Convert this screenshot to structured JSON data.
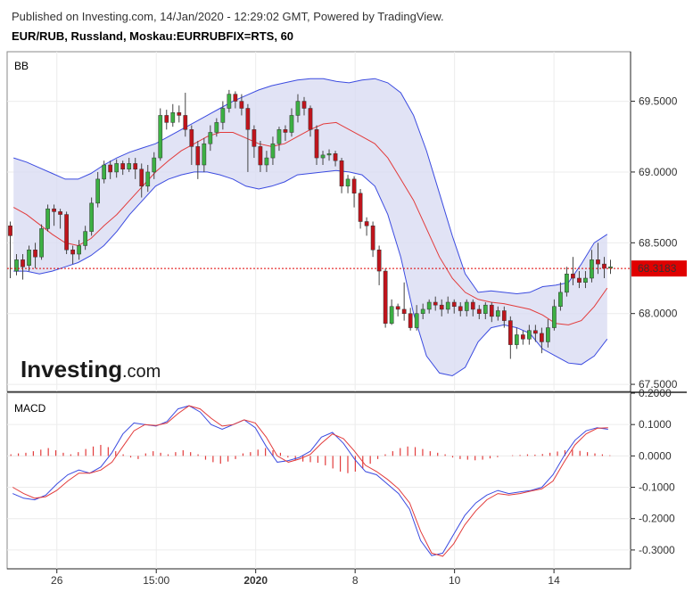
{
  "header": {
    "published": "Published on Investing.com, 14/Jan/2020 - 12:29:02 GMT, Powered by TradingView.",
    "symbol": "EUR/RUB, Russland, Moskau:EURRUBFIX=RTS, 60"
  },
  "logo": {
    "brand": "Investing",
    "suffix": ".com"
  },
  "colors": {
    "up": "#3cb043",
    "down": "#c0141c",
    "band_line": "#3b4be0",
    "band_fill": "#d9dcf3",
    "basis": "#e23b3b",
    "price_line": "#e00000",
    "macd_line": "#3b4be0",
    "signal_line": "#e23b3b",
    "histogram": "#e23b3b"
  },
  "chart_data": [
    {
      "type": "candlestick",
      "title": "BB",
      "y_ticks": [
        "69.5000",
        "69.0000",
        "68.5000",
        "68.0000",
        "67.5000"
      ],
      "ylim": [
        67.45,
        69.85
      ],
      "x_ticks": [
        "26",
        "15:00",
        "2020",
        "8",
        "10",
        "14"
      ],
      "last_price": "68.3183",
      "candles": [
        [
          68.62,
          68.55,
          68.25,
          68.65
        ],
        [
          68.3,
          68.38,
          68.27,
          68.42
        ],
        [
          68.38,
          68.33,
          68.24,
          68.42
        ],
        [
          68.34,
          68.45,
          68.3,
          68.48
        ],
        [
          68.45,
          68.4,
          68.32,
          68.5
        ],
        [
          68.4,
          68.6,
          68.38,
          68.63
        ],
        [
          68.6,
          68.74,
          68.58,
          68.77
        ],
        [
          68.74,
          68.72,
          68.62,
          68.77
        ],
        [
          68.72,
          68.7,
          68.6,
          68.74
        ],
        [
          68.7,
          68.45,
          68.42,
          68.72
        ],
        [
          68.45,
          68.42,
          68.35,
          68.48
        ],
        [
          68.42,
          68.48,
          68.38,
          68.52
        ],
        [
          68.48,
          68.58,
          68.45,
          68.62
        ],
        [
          68.58,
          68.78,
          68.55,
          68.82
        ],
        [
          68.78,
          68.95,
          68.75,
          69.0
        ],
        [
          68.95,
          69.05,
          68.92,
          69.08
        ],
        [
          69.05,
          69.0,
          68.95,
          69.08
        ],
        [
          69.0,
          69.06,
          68.96,
          69.09
        ],
        [
          69.06,
          69.02,
          68.98,
          69.08
        ],
        [
          69.02,
          69.06,
          69.0,
          69.1
        ],
        [
          69.06,
          69.02,
          68.95,
          69.1
        ],
        [
          69.02,
          68.9,
          68.82,
          69.06
        ],
        [
          68.9,
          69.0,
          68.86,
          69.05
        ],
        [
          69.0,
          69.1,
          68.95,
          69.14
        ],
        [
          69.1,
          69.4,
          69.08,
          69.45
        ],
        [
          69.4,
          69.35,
          69.3,
          69.44
        ],
        [
          69.35,
          69.42,
          69.32,
          69.48
        ],
        [
          69.42,
          69.4,
          69.35,
          69.47
        ],
        [
          69.4,
          69.3,
          69.25,
          69.56
        ],
        [
          69.3,
          69.18,
          69.05,
          69.33
        ],
        [
          69.18,
          69.05,
          68.95,
          69.22
        ],
        [
          69.05,
          69.2,
          69.0,
          69.24
        ],
        [
          69.2,
          69.28,
          69.15,
          69.33
        ],
        [
          69.28,
          69.35,
          69.25,
          69.38
        ],
        [
          69.35,
          69.45,
          69.3,
          69.5
        ],
        [
          69.45,
          69.55,
          69.42,
          69.58
        ],
        [
          69.55,
          69.5,
          69.45,
          69.57
        ],
        [
          69.5,
          69.45,
          69.4,
          69.55
        ],
        [
          69.45,
          69.3,
          69.0,
          69.48
        ],
        [
          69.3,
          69.18,
          69.1,
          69.33
        ],
        [
          69.18,
          69.05,
          69.0,
          69.22
        ],
        [
          69.05,
          69.1,
          69.0,
          69.15
        ],
        [
          69.1,
          69.2,
          69.05,
          69.25
        ],
        [
          69.2,
          69.3,
          69.15,
          69.32
        ],
        [
          69.3,
          69.28,
          69.22,
          69.33
        ],
        [
          69.28,
          69.4,
          69.25,
          69.45
        ],
        [
          69.4,
          69.5,
          69.35,
          69.55
        ],
        [
          69.5,
          69.45,
          69.4,
          69.53
        ],
        [
          69.45,
          69.3,
          69.25,
          69.47
        ],
        [
          69.3,
          69.1,
          69.05,
          69.33
        ],
        [
          69.1,
          69.12,
          69.05,
          69.15
        ],
        [
          69.12,
          69.13,
          69.08,
          69.16
        ],
        [
          69.13,
          69.08,
          69.04,
          69.15
        ],
        [
          69.08,
          68.9,
          68.85,
          69.1
        ],
        [
          68.9,
          68.95,
          68.85,
          68.98
        ],
        [
          68.95,
          68.85,
          68.75,
          68.97
        ],
        [
          68.85,
          68.65,
          68.6,
          68.88
        ],
        [
          68.65,
          68.62,
          68.55,
          68.68
        ],
        [
          68.62,
          68.45,
          68.4,
          68.65
        ],
        [
          68.45,
          68.3,
          68.2,
          68.48
        ],
        [
          68.3,
          67.93,
          67.9,
          68.32
        ],
        [
          67.93,
          68.05,
          67.92,
          68.1
        ],
        [
          68.05,
          68.03,
          67.98,
          68.07
        ],
        [
          68.03,
          68.0,
          67.95,
          68.22
        ],
        [
          68.0,
          67.9,
          67.88,
          68.04
        ],
        [
          67.9,
          68.0,
          67.88,
          68.06
        ],
        [
          68.0,
          68.03,
          67.96,
          68.07
        ],
        [
          68.03,
          68.08,
          68.0,
          68.1
        ],
        [
          68.08,
          68.06,
          68.02,
          68.12
        ],
        [
          68.06,
          68.03,
          67.98,
          68.1
        ],
        [
          68.03,
          68.08,
          68.0,
          68.12
        ],
        [
          68.08,
          68.05,
          68.0,
          68.1
        ],
        [
          68.05,
          68.02,
          67.98,
          68.08
        ],
        [
          68.02,
          68.08,
          67.98,
          68.1
        ],
        [
          68.08,
          68.03,
          67.98,
          68.1
        ],
        [
          68.03,
          68.0,
          67.96,
          68.06
        ],
        [
          68.0,
          68.06,
          67.96,
          68.08
        ],
        [
          68.06,
          67.98,
          67.94,
          68.08
        ],
        [
          67.98,
          68.02,
          67.95,
          68.05
        ],
        [
          68.02,
          67.95,
          67.9,
          68.05
        ],
        [
          67.95,
          67.78,
          67.68,
          67.98
        ],
        [
          67.78,
          67.85,
          67.75,
          67.9
        ],
        [
          67.85,
          67.82,
          67.78,
          67.88
        ],
        [
          67.82,
          67.88,
          67.78,
          67.92
        ],
        [
          67.88,
          67.86,
          67.8,
          67.92
        ],
        [
          67.86,
          67.8,
          67.72,
          67.9
        ],
        [
          67.8,
          67.9,
          67.76,
          67.96
        ],
        [
          67.9,
          68.05,
          67.88,
          68.1
        ],
        [
          68.05,
          68.15,
          68.02,
          68.22
        ],
        [
          68.15,
          68.28,
          68.12,
          68.33
        ],
        [
          68.28,
          68.25,
          68.2,
          68.4
        ],
        [
          68.25,
          68.22,
          68.18,
          68.3
        ],
        [
          68.22,
          68.25,
          68.18,
          68.3
        ],
        [
          68.25,
          68.38,
          68.22,
          68.45
        ],
        [
          68.38,
          68.35,
          68.28,
          68.5
        ],
        [
          68.35,
          68.32,
          68.25,
          68.4
        ],
        [
          68.32,
          68.33,
          68.28,
          68.38
        ]
      ],
      "bb_upper": [
        69.1,
        69.07,
        69.03,
        68.99,
        68.95,
        68.95,
        68.99,
        69.05,
        69.1,
        69.14,
        69.17,
        69.2,
        69.25,
        69.3,
        69.35,
        69.4,
        69.45,
        69.5,
        69.54,
        69.58,
        69.61,
        69.63,
        69.65,
        69.66,
        69.66,
        69.64,
        69.63,
        69.65,
        69.66,
        69.63,
        69.56,
        69.4,
        69.15,
        68.85,
        68.55,
        68.28,
        68.15,
        68.16,
        68.15,
        68.14,
        68.15,
        68.19,
        68.2,
        68.22,
        68.35,
        68.5,
        68.56
      ],
      "bb_basis": [
        68.75,
        68.7,
        68.63,
        68.56,
        68.5,
        68.48,
        68.53,
        68.62,
        68.7,
        68.8,
        68.9,
        69.0,
        69.08,
        69.15,
        69.2,
        69.25,
        69.28,
        69.28,
        69.24,
        69.2,
        69.18,
        69.2,
        69.25,
        69.3,
        69.34,
        69.35,
        69.3,
        69.25,
        69.2,
        69.1,
        68.95,
        68.8,
        68.6,
        68.4,
        68.25,
        68.15,
        68.1,
        68.08,
        68.07,
        68.05,
        68.03,
        67.99,
        67.93,
        67.92,
        67.95,
        68.05,
        68.18
      ],
      "bb_lower": [
        68.3,
        68.3,
        68.28,
        68.3,
        68.33,
        68.36,
        68.41,
        68.48,
        68.58,
        68.7,
        68.8,
        68.9,
        68.95,
        68.98,
        69.0,
        69.0,
        68.98,
        68.95,
        68.9,
        68.88,
        68.9,
        68.93,
        68.98,
        68.99,
        69.0,
        69.01,
        69.0,
        68.98,
        68.9,
        68.7,
        68.4,
        68.0,
        67.7,
        67.58,
        67.56,
        67.62,
        67.8,
        67.9,
        67.92,
        67.9,
        67.86,
        67.75,
        67.7,
        67.65,
        67.64,
        67.7,
        67.82
      ]
    },
    {
      "type": "line",
      "title": "MACD",
      "y_ticks": [
        "0.2000",
        "0.1000",
        "0.0000",
        "-0.1000",
        "-0.2000",
        "-0.3000"
      ],
      "ylim": [
        -0.36,
        0.2
      ],
      "macd": [
        -0.12,
        -0.135,
        -0.14,
        -0.125,
        -0.09,
        -0.06,
        -0.045,
        -0.055,
        -0.035,
        0.01,
        0.07,
        0.105,
        0.1,
        0.095,
        0.11,
        0.15,
        0.16,
        0.14,
        0.1,
        0.085,
        0.1,
        0.115,
        0.09,
        0.03,
        -0.02,
        -0.015,
        -0.005,
        0.015,
        0.06,
        0.075,
        0.04,
        -0.01,
        -0.05,
        -0.06,
        -0.09,
        -0.12,
        -0.17,
        -0.27,
        -0.318,
        -0.31,
        -0.25,
        -0.19,
        -0.15,
        -0.125,
        -0.11,
        -0.12,
        -0.115,
        -0.11,
        -0.1,
        -0.06,
        0.0,
        0.05,
        0.08,
        0.09,
        0.085
      ],
      "signal": [
        -0.1,
        -0.12,
        -0.135,
        -0.13,
        -0.11,
        -0.08,
        -0.055,
        -0.055,
        -0.045,
        -0.02,
        0.03,
        0.08,
        0.1,
        0.097,
        0.105,
        0.135,
        0.16,
        0.15,
        0.12,
        0.095,
        0.1,
        0.115,
        0.105,
        0.06,
        0.0,
        -0.02,
        -0.01,
        0.005,
        0.04,
        0.07,
        0.055,
        0.015,
        -0.03,
        -0.05,
        -0.075,
        -0.105,
        -0.15,
        -0.24,
        -0.31,
        -0.32,
        -0.28,
        -0.22,
        -0.175,
        -0.14,
        -0.12,
        -0.125,
        -0.12,
        -0.112,
        -0.105,
        -0.08,
        -0.02,
        0.035,
        0.07,
        0.088,
        0.09
      ],
      "histogram": [
        0.005,
        0.008,
        0.01,
        0.015,
        0.02,
        0.025,
        0.018,
        0.01,
        0.005,
        0.012,
        0.022,
        0.03,
        0.035,
        0.028,
        0.015,
        0.005,
        -0.005,
        -0.01,
        0.008,
        0.015,
        0.01,
        0.005,
        0.012,
        0.018,
        0.012,
        0.005,
        -0.012,
        -0.02,
        -0.025,
        -0.018,
        -0.01,
        0.008,
        0.012,
        0.02,
        0.025,
        0.018,
        0.01,
        -0.005,
        -0.015,
        -0.018,
        -0.02,
        -0.022,
        -0.03,
        -0.04,
        -0.05,
        -0.055,
        -0.05,
        -0.04,
        -0.025,
        -0.01,
        0.005,
        0.015,
        0.025,
        0.03,
        0.028,
        0.022,
        0.015,
        0.01,
        0.005,
        -0.005,
        -0.01,
        -0.012,
        -0.014,
        -0.012,
        -0.008,
        -0.004,
        0.0,
        0.002,
        0.003,
        0.005,
        0.004,
        0.006,
        0.01,
        0.014,
        0.018,
        0.02,
        0.016,
        0.012,
        0.008,
        0.005,
        0.002
      ]
    }
  ]
}
